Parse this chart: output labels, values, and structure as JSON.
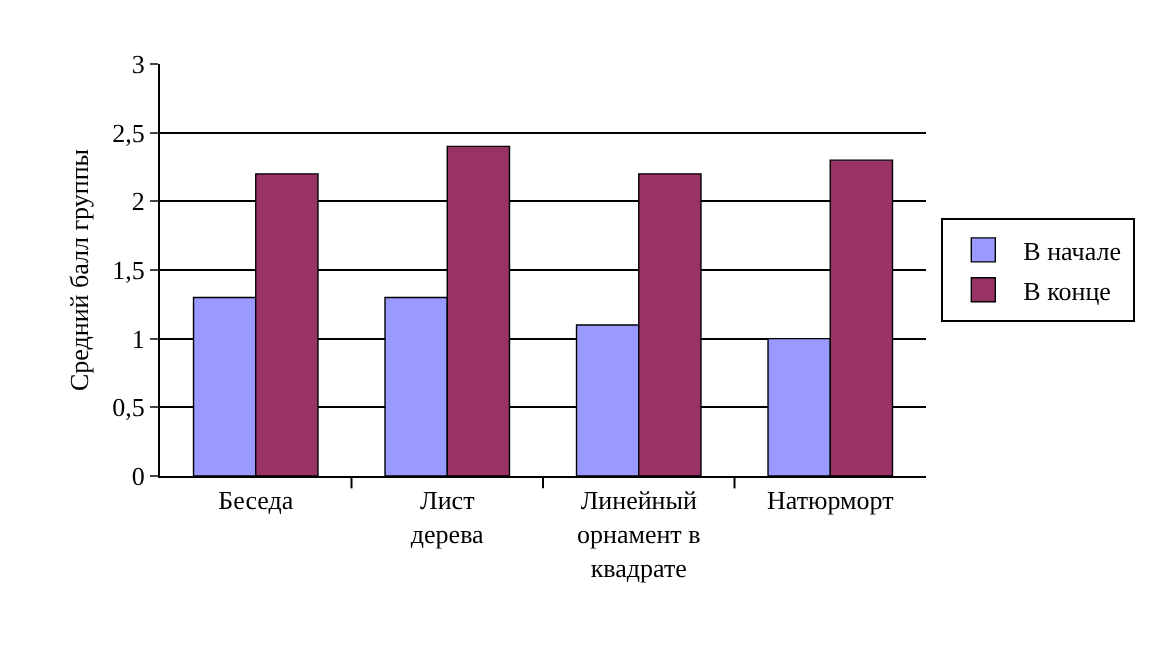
{
  "chart_data": {
    "type": "bar",
    "ylabel": "Средний балл группы",
    "categories": [
      "Беседа",
      "Лист дерева",
      "Линейный орнамент в квадрате",
      "Натюрморт"
    ],
    "series": [
      {
        "name": "В начале",
        "color": "#9999ff",
        "values": [
          1.3,
          1.3,
          1.1,
          1.0
        ]
      },
      {
        "name": "В конце",
        "color": "#993366",
        "values": [
          2.2,
          2.4,
          2.2,
          2.3
        ]
      }
    ],
    "ylim": [
      0,
      3
    ],
    "yticks": [
      0,
      {
        "value": 0.5,
        "label": "0,5"
      },
      1,
      {
        "value": 1.5,
        "label": "1,5"
      },
      2,
      {
        "value": 2.5,
        "label": "2,5"
      },
      3
    ],
    "grid": "y",
    "legend": "right"
  }
}
